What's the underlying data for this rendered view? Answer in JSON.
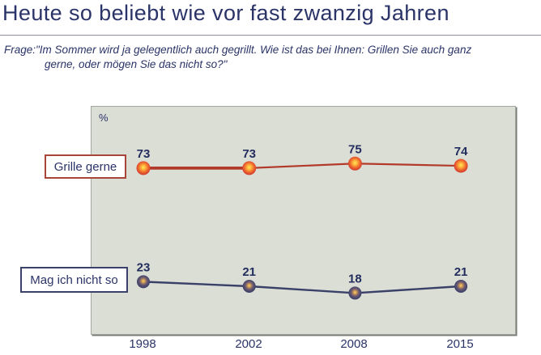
{
  "title": "Heute so beliebt wie vor fast zwanzig Jahren",
  "subtitle": {
    "line1": "Frage:\"Im Sommer wird ja gelegentlich auch gegrillt. Wie ist das bei Ihnen: Grillen Sie auch ganz",
    "line2": "gerne, oder mögen Sie das nicht so?\""
  },
  "chart_data": {
    "type": "line",
    "title": "Heute so beliebt wie vor fast zwanzig Jahren",
    "ylabel": "%",
    "ylim": [
      0,
      100
    ],
    "grid": false,
    "legend_position": "left-boxes",
    "categories": [
      "1998",
      "2002",
      "2008",
      "2015"
    ],
    "series": [
      {
        "name": "Grille gerne",
        "values": [
          73,
          73,
          75,
          74
        ],
        "color": "#b23a2b"
      },
      {
        "name": "Mag ich nicht so",
        "values": [
          23,
          21,
          18,
          21
        ],
        "color": "#3a4169"
      }
    ]
  },
  "colors": {
    "text_navy": "#2b3468",
    "plot_background": "#dbded5",
    "plot_border": "#a2a7a0",
    "red_box_border": "#a94438",
    "blue_box_border": "#3b4269"
  }
}
